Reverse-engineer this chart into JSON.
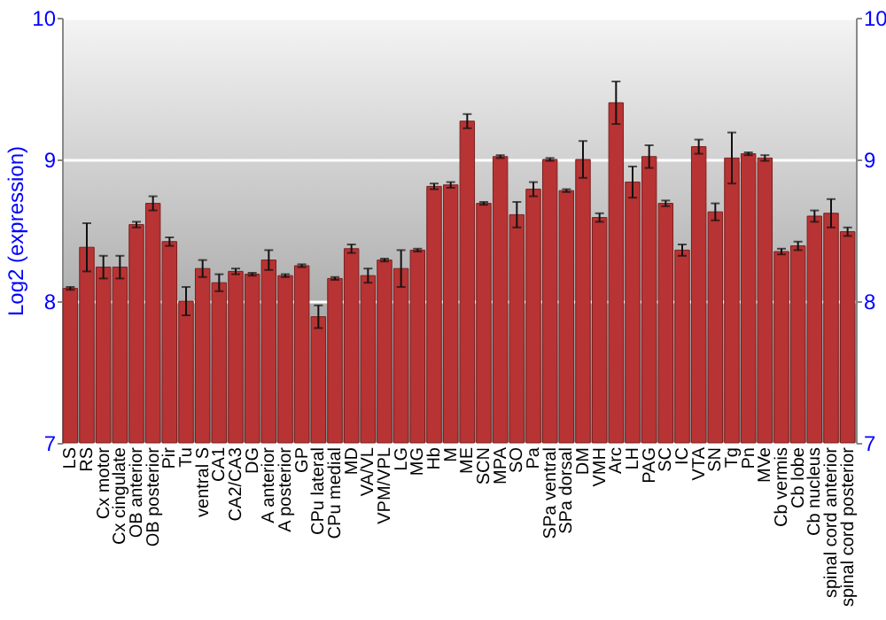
{
  "chart_data": {
    "type": "bar",
    "ylabel": "Log2 (expression)",
    "categories": [
      "LS",
      "RS",
      "Cx motor",
      "Cx cingulate",
      "OB anterior",
      "OB posterior",
      "Pir",
      "Tu",
      "ventral S",
      "CA1",
      "CA2/CA3",
      "DG",
      "A anterior",
      "A posterior",
      "GP",
      "CPu lateral",
      "CPu medial",
      "MD",
      "VA/VL",
      "VPM/VPL",
      "LG",
      "MG",
      "Hb",
      "M",
      "ME",
      "SCN",
      "MPA",
      "SO",
      "Pa",
      "SPa ventral",
      "SPa dorsal",
      "DM",
      "VMH",
      "Arc",
      "LH",
      "PAG",
      "SC",
      "IC",
      "VTA",
      "SN",
      "Tg",
      "Pn",
      "MVe",
      "Cb vermis",
      "Cb lobe",
      "Cb nucleus",
      "spinal cord anterior",
      "spinal cord posterior"
    ],
    "values": [
      8.09,
      8.38,
      8.24,
      8.24,
      8.54,
      8.69,
      8.42,
      8.0,
      8.23,
      8.13,
      8.21,
      8.19,
      8.29,
      8.18,
      8.25,
      7.89,
      8.16,
      8.37,
      8.18,
      8.29,
      8.23,
      8.36,
      8.81,
      8.82,
      9.27,
      8.69,
      9.02,
      8.61,
      8.79,
      9.0,
      8.78,
      9.0,
      8.59,
      9.4,
      8.84,
      9.02,
      8.69,
      8.36,
      9.09,
      8.63,
      9.01,
      9.04,
      9.01,
      8.35,
      8.39,
      8.6,
      8.62,
      8.49
    ],
    "errors": [
      0.01,
      0.17,
      0.08,
      0.08,
      0.02,
      0.05,
      0.03,
      0.1,
      0.06,
      0.06,
      0.02,
      0.01,
      0.07,
      0.01,
      0.01,
      0.08,
      0.01,
      0.03,
      0.05,
      0.01,
      0.13,
      0.01,
      0.02,
      0.02,
      0.05,
      0.01,
      0.01,
      0.09,
      0.05,
      0.01,
      0.01,
      0.13,
      0.03,
      0.15,
      0.11,
      0.08,
      0.02,
      0.04,
      0.05,
      0.06,
      0.18,
      0.01,
      0.02,
      0.02,
      0.03,
      0.04,
      0.1,
      0.03
    ],
    "color": "#b83333",
    "ylim": [
      7,
      10
    ],
    "yticks": [
      7,
      8,
      9,
      10
    ],
    "y2lim": [
      7,
      10
    ],
    "y2ticks": [
      7,
      8,
      9,
      10
    ],
    "grid": true
  }
}
